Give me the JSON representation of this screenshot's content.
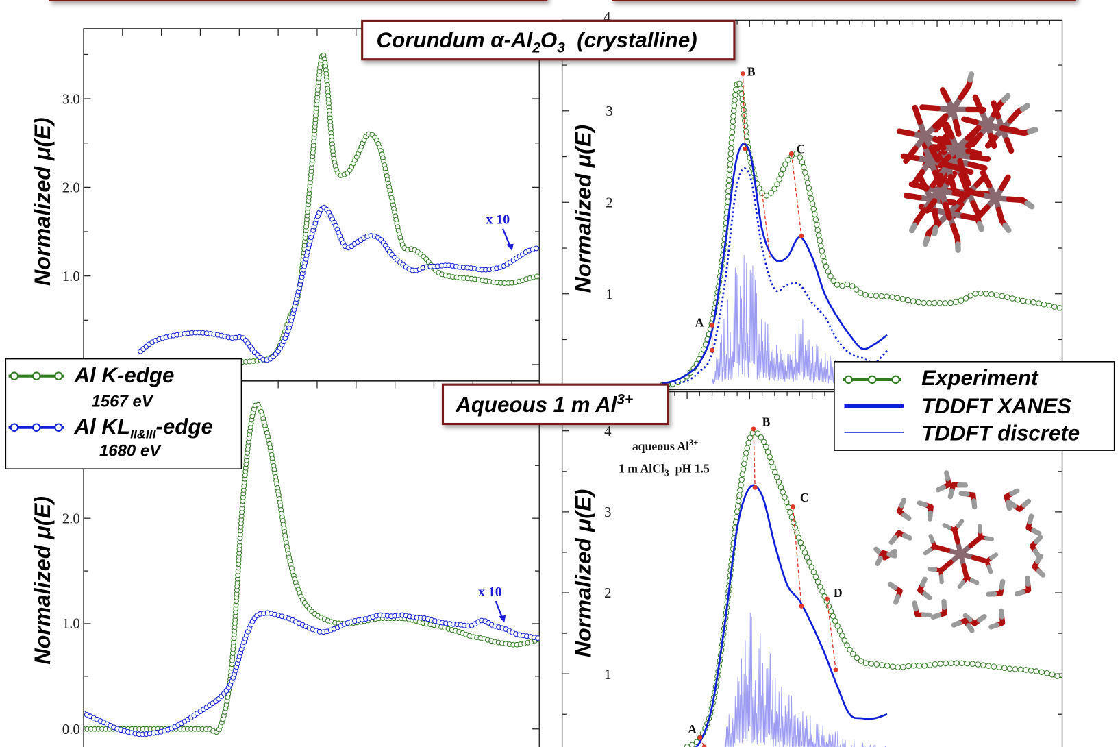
{
  "colors": {
    "experiment": "#2f7d1f",
    "tddft": "#1020d8",
    "discrete": "#8c8cf0",
    "annotation_red": "#e03a2a",
    "box_border": "#7a1a1a",
    "oxygen": "#b01010",
    "aluminum": "#8a6a70",
    "hydrogen": "#9a9a9a"
  },
  "titles": {
    "corundum": {
      "pre": "Corundum α-Al",
      "sub1": "2",
      "mid": "O",
      "sub2": "3",
      "post": "  (crystalline)"
    },
    "aqueous": {
      "pre": "Aqueous 1 m Al",
      "sup": "3+"
    }
  },
  "legend_left": {
    "items": [
      {
        "label": "Al K-edge",
        "energy": "1567 eV",
        "color": "#2f7d1f"
      },
      {
        "label_pre": "Al KL",
        "label_sub": "II&III",
        "label_post": "-edge",
        "energy": "1680 eV",
        "color": "#1020d8"
      }
    ]
  },
  "legend_right": {
    "items": [
      {
        "label": "Experiment",
        "style": "line-open-circles",
        "color": "#2f7d1f"
      },
      {
        "label": "TDDFT XANES",
        "style": "thick-line",
        "color": "#1020d8"
      },
      {
        "label": "TDDFT discrete",
        "style": "thin-line",
        "color": "#1020d8"
      }
    ]
  },
  "aqueous_note": {
    "line1_pre": "aqueous Al",
    "line1_sup": "3+",
    "line2_pre": "1 m AlCl",
    "line2_sub": "3",
    "line2_post": "  pH 1.5"
  },
  "molecules": {
    "corundum": "corundum-cluster-stick-model",
    "aqueous": "hydrated-al3-cluster-stick-model"
  },
  "chart_data": [
    {
      "type": "line",
      "panel": "top-left",
      "ylabel": "Normalized μ(E)",
      "yticks": [
        "1.0",
        "2.0",
        "3.0"
      ],
      "ylim": [
        -0.18,
        3.79
      ],
      "x_axis_labels": "none shown",
      "annotation": "x 10",
      "series": [
        {
          "name": "Al K-edge",
          "marker": "open-circle",
          "values": [
            null,
            null,
            null,
            null,
            null,
            null,
            null,
            null,
            null,
            null,
            null,
            0.02,
            0.02,
            0.02,
            0.03,
            0.04,
            0.06,
            0.15,
            0.5,
            0.9,
            2.2,
            3.5,
            2.3,
            2.15,
            2.35,
            2.6,
            2.45,
            1.9,
            1.35,
            1.3,
            1.2,
            1.05,
            1.0,
            0.98,
            0.97,
            0.95,
            0.93,
            0.92,
            0.93,
            0.97,
            1.0
          ]
        },
        {
          "name": "Al KLII&III-edge",
          "marker": "open-circle",
          "values": [
            null,
            null,
            null,
            null,
            null,
            0.15,
            0.25,
            0.3,
            0.33,
            0.35,
            0.36,
            0.35,
            0.33,
            0.3,
            0.3,
            0.14,
            0.05,
            0.14,
            0.4,
            0.9,
            1.45,
            1.77,
            1.6,
            1.33,
            1.38,
            1.45,
            1.42,
            1.25,
            1.13,
            1.06,
            1.1,
            1.11,
            1.12,
            1.1,
            1.09,
            1.07,
            1.08,
            1.12,
            1.2,
            1.28,
            1.32
          ]
        }
      ]
    },
    {
      "type": "line",
      "panel": "bottom-left",
      "ylabel": "Normalized μ(E)",
      "yticks": [
        "0.0",
        "1.0",
        "2.0"
      ],
      "ylim": [
        -0.47,
        3.31
      ],
      "x_axis_labels": "none shown",
      "annotation": "x 10",
      "series": [
        {
          "name": "Al K-edge",
          "marker": "open-circle",
          "values": [
            0,
            0,
            0,
            0,
            0,
            0,
            0,
            0,
            0,
            0,
            0,
            0,
            0.02,
            0.6,
            2.2,
            3.05,
            2.85,
            2.3,
            1.65,
            1.28,
            1.12,
            1.05,
            1.01,
            1.0,
            1.01,
            1.03,
            1.05,
            1.05,
            1.05,
            1.03,
            1.0,
            0.98,
            0.95,
            0.92,
            0.88,
            0.86,
            0.83,
            0.81,
            0.8,
            0.82,
            0.85
          ]
        },
        {
          "name": "Al KLII&III-edge",
          "marker": "open-circle",
          "values": [
            0.15,
            0.1,
            0.05,
            0.0,
            -0.03,
            -0.05,
            -0.04,
            -0.02,
            0.02,
            0.08,
            0.15,
            0.22,
            0.3,
            0.45,
            0.8,
            1.05,
            1.1,
            1.08,
            1.05,
            1.0,
            0.95,
            0.92,
            0.95,
            1.0,
            1.03,
            1.05,
            1.08,
            1.07,
            1.08,
            1.06,
            1.05,
            1.02,
            1.0,
            0.99,
            0.98,
            1.03,
            0.98,
            0.95,
            0.9,
            0.88,
            0.86
          ]
        }
      ]
    },
    {
      "type": "line",
      "panel": "top-right",
      "ylabel": "Normalized μ(E)",
      "yticks": [
        "1",
        "2",
        "3",
        "4"
      ],
      "ylim": [
        0,
        4
      ],
      "x_axis_labels": "none shown",
      "peak_labels": [
        "A",
        "B",
        "C"
      ],
      "series": [
        {
          "name": "Experiment",
          "marker": "open-circle",
          "values": [
            null,
            null,
            null,
            null,
            null,
            null,
            null,
            null,
            0.0,
            0.02,
            0.1,
            0.3,
            0.7,
            1.6,
            3.3,
            2.5,
            2.1,
            2.15,
            2.45,
            2.5,
            2.0,
            1.35,
            1.1,
            1.1,
            1.0,
            0.98,
            0.97,
            0.95,
            0.92,
            0.9,
            0.9,
            0.9,
            0.93,
            1.0,
            1.0,
            0.98,
            0.95,
            0.92,
            0.9,
            0.87,
            0.84
          ]
        },
        {
          "name": "TDDFT XANES",
          "style": "solid",
          "values": [
            null,
            null,
            null,
            null,
            null,
            null,
            null,
            null,
            0.02,
            0.05,
            0.12,
            0.25,
            0.6,
            1.5,
            2.5,
            2.55,
            1.7,
            1.38,
            1.4,
            1.62,
            1.4,
            1.0,
            0.75,
            0.55,
            0.4,
            0.45,
            0.55,
            null,
            null,
            null,
            null,
            null,
            null,
            null,
            null,
            null,
            null,
            null,
            null,
            null,
            null
          ]
        },
        {
          "style": "dotted",
          "values": [
            null,
            null,
            null,
            null,
            null,
            null,
            null,
            null,
            null,
            0.02,
            0.05,
            0.15,
            0.35,
            1.1,
            2.2,
            2.3,
            1.5,
            1.05,
            1.1,
            1.1,
            0.9,
            0.75,
            0.5,
            0.35,
            0.3,
            0.25,
            0.38,
            null,
            null,
            null,
            null,
            null,
            null,
            null,
            null,
            null,
            null,
            null,
            null,
            null,
            null
          ]
        },
        {
          "name": "TDDFT discrete",
          "style": "spikes",
          "values": [
            null,
            null,
            null,
            null,
            null,
            null,
            null,
            null,
            null,
            null,
            null,
            null,
            0.1,
            0.8,
            1.5,
            1.6,
            0.9,
            0.5,
            0.5,
            0.8,
            0.6,
            0.4,
            0.3,
            0.2,
            null,
            null,
            null,
            null,
            null,
            null,
            null,
            null,
            null,
            null,
            null,
            null,
            null,
            null,
            null,
            null,
            null
          ]
        }
      ]
    },
    {
      "type": "line",
      "panel": "bottom-right",
      "ylabel": "Normalized μ(E)",
      "yticks": [
        "1",
        "2",
        "3",
        "4"
      ],
      "ylim": [
        -0.3,
        4.49
      ],
      "x_axis_labels": "none shown",
      "peak_labels": [
        "A",
        "B",
        "C",
        "D"
      ],
      "series": [
        {
          "name": "Experiment",
          "marker": "open-circle",
          "values": [
            null,
            null,
            null,
            null,
            null,
            null,
            null,
            null,
            null,
            null,
            0.1,
            0.2,
            0.6,
            1.6,
            3.0,
            3.9,
            3.9,
            3.5,
            3.1,
            2.65,
            2.3,
            1.95,
            1.6,
            1.3,
            1.15,
            1.12,
            1.1,
            1.08,
            1.1,
            1.1,
            1.12,
            1.13,
            1.13,
            1.12,
            1.1,
            1.08,
            1.06,
            1.05,
            1.03,
            1.0,
            0.95
          ]
        },
        {
          "name": "TDDFT XANES",
          "style": "solid",
          "values": [
            null,
            null,
            null,
            null,
            null,
            null,
            null,
            null,
            null,
            null,
            0.05,
            0.15,
            0.6,
            1.6,
            2.8,
            3.3,
            3.2,
            2.6,
            2.1,
            1.9,
            1.6,
            1.25,
            0.85,
            0.5,
            0.45,
            0.45,
            0.5,
            null,
            null,
            null,
            null,
            null,
            null,
            null,
            null,
            null,
            null,
            null,
            null,
            null,
            null
          ]
        },
        {
          "name": "TDDFT discrete",
          "style": "spikes",
          "values": [
            null,
            null,
            null,
            null,
            null,
            null,
            null,
            null,
            null,
            null,
            null,
            null,
            null,
            0.3,
            1.0,
            1.9,
            1.7,
            1.1,
            0.8,
            0.6,
            0.5,
            0.4,
            0.3,
            0.2,
            0.15,
            0.15,
            0.12,
            null,
            null,
            null,
            null,
            null,
            null,
            null,
            null,
            null,
            null,
            null,
            null,
            null,
            null
          ]
        }
      ]
    }
  ]
}
